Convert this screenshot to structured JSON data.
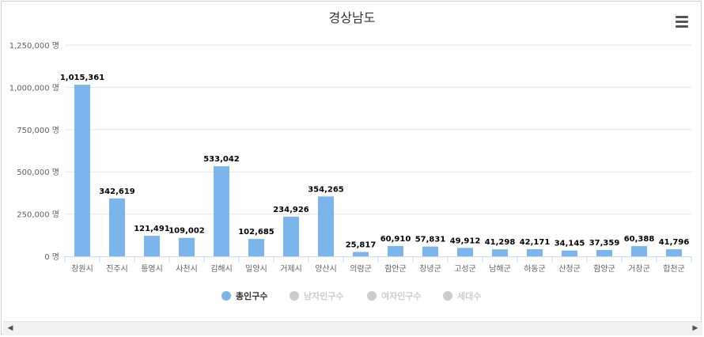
{
  "icons": {
    "menu": "hamburger-menu-icon",
    "scroll_left": "arrow-left-icon",
    "scroll_right": "arrow-right-icon"
  },
  "scroll": {
    "left_glyph": "◀",
    "right_glyph": "▶"
  },
  "chart_data": {
    "type": "bar",
    "title": "경상남도",
    "xlabel": "",
    "ylabel": "",
    "ylim": [
      0,
      1250000
    ],
    "yticks": [
      0,
      250000,
      500000,
      750000,
      1000000,
      1250000
    ],
    "ytick_labels": [
      "0 명",
      "250,000 명",
      "500,000 명",
      "750,000 명",
      "1,000,000 명",
      "1,250,000 명"
    ],
    "grid": true,
    "legend_position": "bottom-center",
    "categories": [
      "창원시",
      "진주시",
      "통영시",
      "사천시",
      "김해시",
      "밀양시",
      "거제시",
      "양산시",
      "의령군",
      "함안군",
      "창녕군",
      "고성군",
      "남해군",
      "하동군",
      "산청군",
      "함양군",
      "거창군",
      "합천군"
    ],
    "series": [
      {
        "name": "총인구수",
        "visible": true,
        "color": "#7cb5ec",
        "values": [
          1015361,
          342619,
          121491,
          109002,
          533042,
          102685,
          234926,
          354265,
          25817,
          60910,
          57831,
          49912,
          41298,
          42171,
          34145,
          37359,
          60388,
          41796
        ],
        "value_labels": [
          "1,015,361",
          "342,619",
          "121,491",
          "109,002",
          "533,042",
          "102,685",
          "234,926",
          "354,265",
          "25,817",
          "60,910",
          "57,831",
          "49,912",
          "41,298",
          "42,171",
          "34,145",
          "37,359",
          "60,388",
          "41,796"
        ]
      },
      {
        "name": "남자인구수",
        "visible": false,
        "color": "#cccccc"
      },
      {
        "name": "여자인구수",
        "visible": false,
        "color": "#cccccc"
      },
      {
        "name": "세대수",
        "visible": false,
        "color": "#cccccc"
      }
    ]
  }
}
